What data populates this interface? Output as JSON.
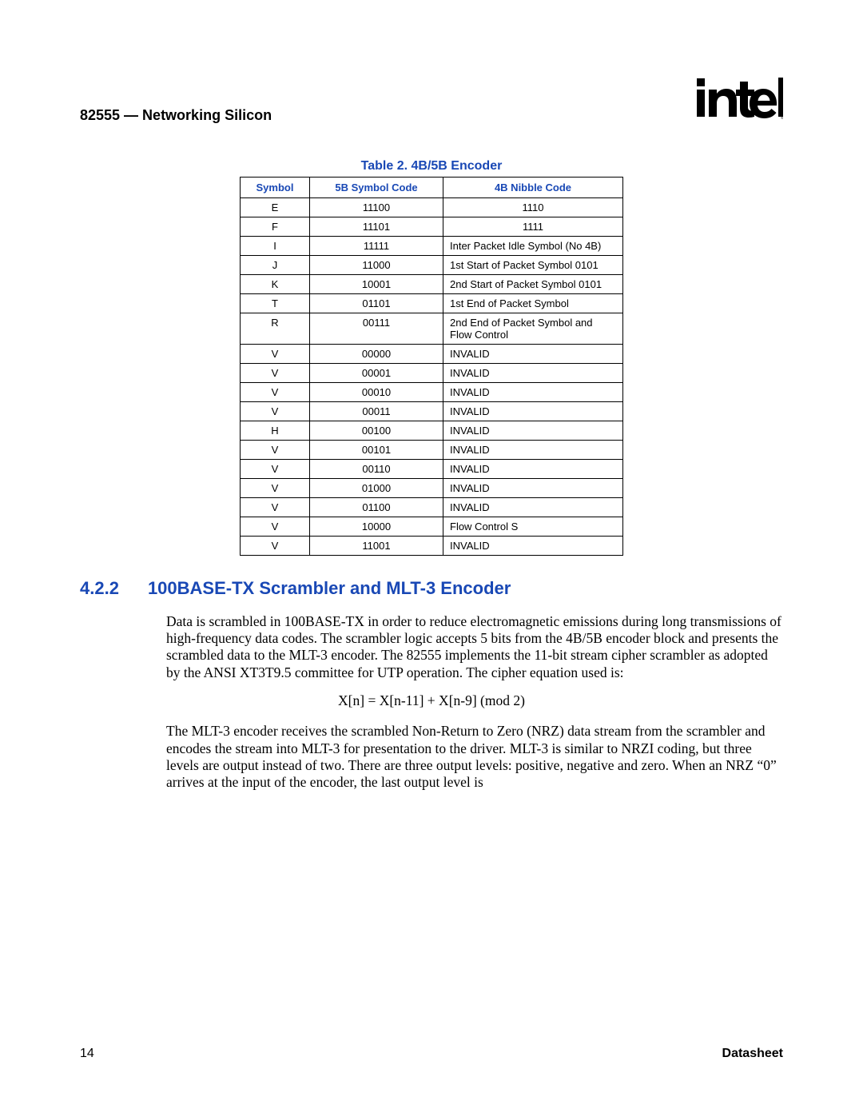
{
  "header": {
    "title": "82555 — Networking Silicon",
    "logo_text": "intel",
    "logo_reg": "®"
  },
  "table": {
    "caption": "Table 2. 4B/5B Encoder",
    "columns": [
      "Symbol",
      "5B Symbol Code",
      "4B Nibble Code"
    ],
    "rows": [
      {
        "sym": "E",
        "code5": "11100",
        "code4": "1110",
        "center4": true
      },
      {
        "sym": "F",
        "code5": "11101",
        "code4": "1111",
        "center4": true
      },
      {
        "sym": "I",
        "code5": "11111",
        "code4": "Inter Packet Idle Symbol (No 4B)",
        "center4": false
      },
      {
        "sym": "J",
        "code5": "11000",
        "code4": "1st Start of Packet Symbol 0101",
        "center4": false
      },
      {
        "sym": "K",
        "code5": "10001",
        "code4": "2nd Start of Packet Symbol 0101",
        "center4": false
      },
      {
        "sym": "T",
        "code5": "01101",
        "code4": "1st End of Packet Symbol",
        "center4": false
      },
      {
        "sym": "R",
        "code5": "00111",
        "code4": "2nd End of Packet Symbol and Flow Control",
        "center4": false
      },
      {
        "sym": "V",
        "code5": "00000",
        "code4": "INVALID",
        "center4": false
      },
      {
        "sym": "V",
        "code5": "00001",
        "code4": "INVALID",
        "center4": false
      },
      {
        "sym": "V",
        "code5": "00010",
        "code4": "INVALID",
        "center4": false
      },
      {
        "sym": "V",
        "code5": "00011",
        "code4": "INVALID",
        "center4": false
      },
      {
        "sym": "H",
        "code5": "00100",
        "code4": "INVALID",
        "center4": false
      },
      {
        "sym": "V",
        "code5": "00101",
        "code4": "INVALID",
        "center4": false
      },
      {
        "sym": "V",
        "code5": "00110",
        "code4": "INVALID",
        "center4": false
      },
      {
        "sym": "V",
        "code5": "01000",
        "code4": "INVALID",
        "center4": false
      },
      {
        "sym": "V",
        "code5": "01100",
        "code4": "INVALID",
        "center4": false
      },
      {
        "sym": "V",
        "code5": "10000",
        "code4": "Flow Control S",
        "center4": false
      },
      {
        "sym": "V",
        "code5": "11001",
        "code4": "INVALID",
        "center4": false
      }
    ]
  },
  "section": {
    "number": "4.2.2",
    "title": "100BASE-TX Scrambler and MLT-3 Encoder"
  },
  "paragraphs": {
    "p1": "Data is scrambled in 100BASE-TX in order to reduce electromagnetic emissions during long transmissions of high-frequency data codes. The scrambler logic accepts 5 bits from the 4B/5B encoder block and presents the scrambled data to the MLT-3 encoder. The 82555 implements the 11-bit stream cipher scrambler as adopted by the ANSI XT3T9.5 committee for UTP operation. The cipher equation used is:",
    "equation": "X[n] = X[n-11] + X[n-9] (mod 2)",
    "p2": "The MLT-3 encoder receives the scrambled Non-Return to Zero (NRZ) data stream from the scrambler and encodes the stream into MLT-3 for presentation to the driver. MLT-3 is similar to NRZI coding, but three levels are output instead of two. There are three output levels: positive, negative and zero. When an NRZ “0” arrives at the input of the encoder, the last output level is"
  },
  "footer": {
    "page": "14",
    "label": "Datasheet"
  },
  "style": {
    "link_color": "#1948b5",
    "text_color": "#000000",
    "background": "#ffffff"
  }
}
